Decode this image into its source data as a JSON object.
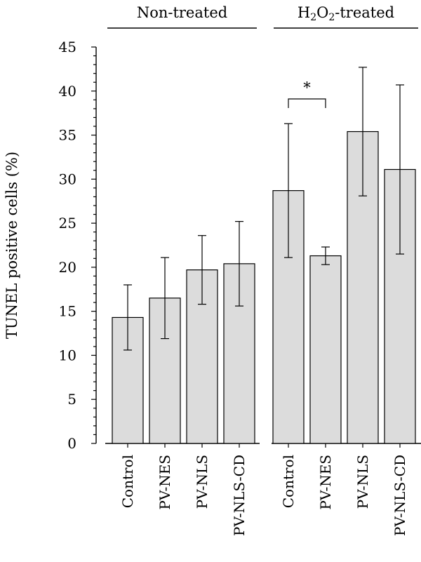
{
  "chart_data": {
    "type": "bar",
    "ylabel": "TUNEL positive cells (%)",
    "ylim": [
      0,
      45
    ],
    "yticks": [
      0,
      5,
      10,
      15,
      20,
      25,
      30,
      35,
      40,
      45
    ],
    "grid": false,
    "groups": [
      {
        "label_parts": [
          {
            "text": "Non-treated",
            "sub": false
          }
        ],
        "categories": [
          "Control",
          "PV-NES",
          "PV-NLS",
          "PV-NLS-CD"
        ],
        "values": [
          14.3,
          16.5,
          19.7,
          20.4
        ],
        "errors": [
          3.7,
          4.6,
          3.9,
          4.8
        ]
      },
      {
        "label_parts": [
          {
            "text": "H",
            "sub": false
          },
          {
            "text": "2",
            "sub": true
          },
          {
            "text": "O",
            "sub": false
          },
          {
            "text": "2",
            "sub": true
          },
          {
            "text": "-treated",
            "sub": false
          }
        ],
        "categories": [
          "Control",
          "PV-NES",
          "PV-NLS",
          "PV-NLS-CD"
        ],
        "values": [
          28.7,
          21.3,
          35.4,
          31.1
        ],
        "errors": [
          7.6,
          1.0,
          7.3,
          9.6
        ]
      }
    ],
    "significance": [
      {
        "group": 1,
        "from": 0,
        "to": 1,
        "label": "*"
      }
    ]
  }
}
